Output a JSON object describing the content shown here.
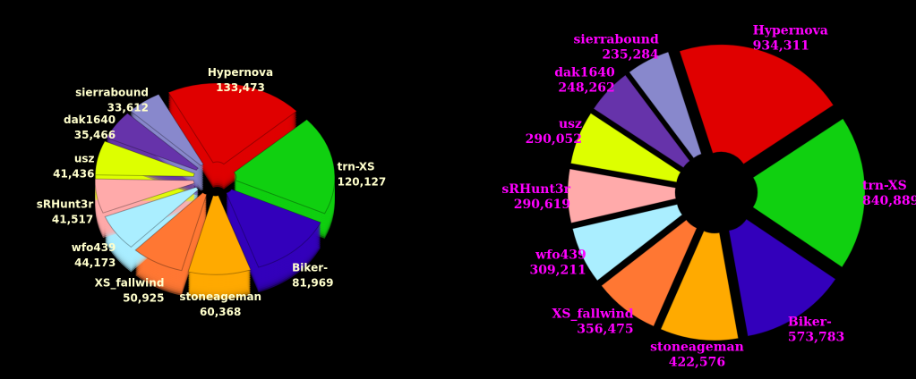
{
  "chart_data": [
    {
      "type": "pie",
      "categories": [
        "Hypernova",
        "trn-XS",
        "Biker-",
        "stoneageman",
        "XS_fallwind",
        "wfo439",
        "sRHunt3r",
        "usz",
        "dak1640",
        "sierrabound"
      ],
      "values": [
        133473,
        120127,
        81969,
        60368,
        50925,
        44173,
        41517,
        41436,
        35466,
        33612
      ],
      "value_labels": [
        "133,473",
        "120,127",
        "81,969",
        "60,368",
        "50,925",
        "44,173",
        "41,517",
        "41,436",
        "35,466",
        "33,612"
      ],
      "colors": [
        "#e00000",
        "#10d010",
        "#3300bb",
        "#ffaa00",
        "#ff7733",
        "#aaeeff",
        "#ffaaaa",
        "#ddff00",
        "#6633aa",
        "#8888cc"
      ],
      "label_color": "#ffffcc"
    },
    {
      "type": "pie",
      "categories": [
        "Hypernova",
        "trn-XS",
        "Biker-",
        "stoneageman",
        "XS_fallwind",
        "wfo439",
        "sRHunt3r",
        "usz",
        "dak1640",
        "sierrabound"
      ],
      "values": [
        934311,
        840889,
        573783,
        422576,
        356475,
        309211,
        290619,
        290052,
        248262,
        235284
      ],
      "value_labels": [
        "934,311",
        "840,889",
        "573,783",
        "422,576",
        "356,475",
        "309,211",
        "290,619",
        "290,052",
        "248,262",
        "235,284"
      ],
      "colors": [
        "#e00000",
        "#10d010",
        "#3300bb",
        "#ffaa00",
        "#ff7733",
        "#aaeeff",
        "#ffaaaa",
        "#ddff00",
        "#6633aa",
        "#8888cc"
      ],
      "label_color": "#ff00ff"
    }
  ]
}
